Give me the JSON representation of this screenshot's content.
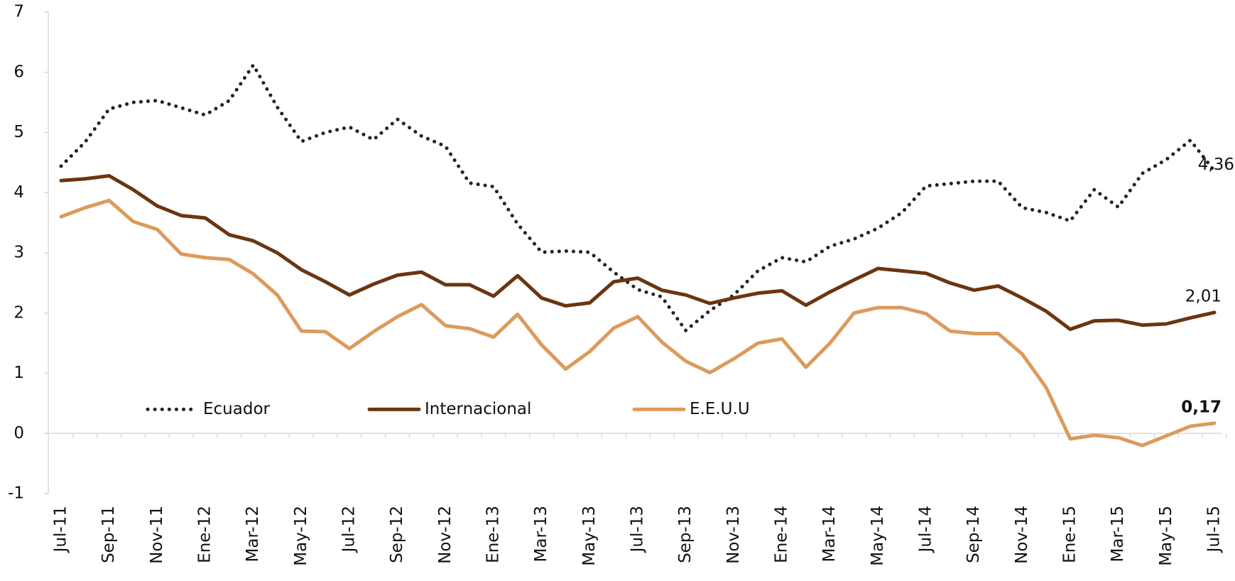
{
  "chart_data": {
    "type": "line",
    "categories": [
      "Jul-11",
      null,
      "Sep-11",
      null,
      "Nov-11",
      null,
      "Ene-12",
      null,
      "Mar-12",
      null,
      "May-12",
      null,
      "Jul-12",
      null,
      "Sep-12",
      null,
      "Nov-12",
      null,
      "Ene-13",
      null,
      "Mar-13",
      null,
      "May-13",
      null,
      "Jul-13",
      null,
      "Sep-13",
      null,
      "Nov-13",
      null,
      "Ene-14",
      null,
      "Mar-14",
      null,
      "May-14",
      null,
      "Jul-14",
      null,
      "Sep-14",
      null,
      "Nov-14",
      null,
      "Ene-15",
      null,
      "Mar-15",
      null,
      "May-15",
      null,
      "Jul-15"
    ],
    "series": [
      {
        "name": "Ecuador",
        "color": "#222222",
        "dotted": true,
        "values": [
          4.44,
          4.84,
          5.39,
          5.5,
          5.53,
          5.41,
          5.29,
          5.53,
          6.12,
          5.42,
          4.85,
          5.0,
          5.09,
          4.88,
          5.22,
          4.94,
          4.77,
          4.16,
          4.1,
          3.48,
          3.01,
          3.03,
          3.01,
          2.68,
          2.39,
          2.27,
          1.71,
          2.04,
          2.3,
          2.7,
          2.92,
          2.85,
          3.11,
          3.23,
          3.41,
          3.67,
          4.11,
          4.15,
          4.19,
          4.19,
          3.75,
          3.67,
          3.53,
          4.05,
          3.76,
          4.32,
          4.55,
          4.87,
          4.36
        ],
        "value_labels": [
          null,
          null,
          null,
          null,
          null,
          null,
          null,
          null,
          null,
          null,
          null,
          null,
          null,
          null,
          null,
          null,
          null,
          null,
          null,
          null,
          null,
          null,
          null,
          null,
          null,
          null,
          null,
          null,
          null,
          null,
          null,
          null,
          null,
          null,
          null,
          null,
          null,
          null,
          null,
          null,
          null,
          null,
          null,
          null,
          null,
          null,
          null,
          null,
          "4,36"
        ]
      },
      {
        "name": "Internacional",
        "color": "#6b3510",
        "dotted": false,
        "values": [
          4.2,
          4.23,
          4.28,
          4.05,
          3.78,
          3.62,
          3.58,
          3.3,
          3.2,
          3.0,
          2.72,
          2.52,
          2.3,
          2.48,
          2.63,
          2.68,
          2.47,
          2.47,
          2.28,
          2.62,
          2.25,
          2.12,
          2.17,
          2.52,
          2.58,
          2.38,
          2.3,
          2.16,
          2.25,
          2.33,
          2.37,
          2.13,
          2.35,
          2.55,
          2.74,
          2.7,
          2.66,
          2.5,
          2.38,
          2.45,
          2.25,
          2.03,
          1.73,
          1.87,
          1.88,
          1.8,
          1.82,
          1.92,
          2.01
        ],
        "value_labels": [
          null,
          null,
          null,
          null,
          null,
          null,
          null,
          null,
          null,
          null,
          null,
          null,
          null,
          null,
          null,
          null,
          null,
          null,
          null,
          null,
          null,
          null,
          null,
          null,
          null,
          null,
          null,
          null,
          null,
          null,
          null,
          null,
          null,
          null,
          null,
          null,
          null,
          null,
          null,
          null,
          null,
          null,
          null,
          null,
          null,
          null,
          null,
          null,
          "2,01"
        ]
      },
      {
        "name": "E.E.U.U",
        "color": "#dc9a5c",
        "dotted": false,
        "values": [
          3.6,
          3.75,
          3.87,
          3.52,
          3.39,
          2.98,
          2.92,
          2.89,
          2.65,
          2.3,
          1.7,
          1.69,
          1.41,
          1.69,
          1.94,
          2.14,
          1.79,
          1.74,
          1.6,
          1.98,
          1.47,
          1.07,
          1.36,
          1.75,
          1.94,
          1.52,
          1.2,
          1.01,
          1.24,
          1.5,
          1.57,
          1.1,
          1.5,
          2.0,
          2.09,
          2.09,
          1.99,
          1.7,
          1.66,
          1.66,
          1.32,
          0.76,
          -0.09,
          -0.03,
          -0.07,
          -0.2,
          -0.04,
          0.12,
          0.17
        ],
        "value_labels": [
          null,
          null,
          null,
          null,
          null,
          null,
          null,
          null,
          null,
          null,
          null,
          null,
          null,
          null,
          null,
          null,
          null,
          null,
          null,
          null,
          null,
          null,
          null,
          null,
          null,
          null,
          null,
          null,
          null,
          null,
          null,
          null,
          null,
          null,
          null,
          null,
          null,
          null,
          null,
          null,
          null,
          null,
          null,
          null,
          null,
          null,
          null,
          null,
          "0,17"
        ]
      }
    ],
    "ylim": [
      -1,
      7
    ],
    "yticks": [
      -1,
      0,
      1,
      2,
      3,
      4,
      5,
      6,
      7
    ],
    "grid": false
  }
}
